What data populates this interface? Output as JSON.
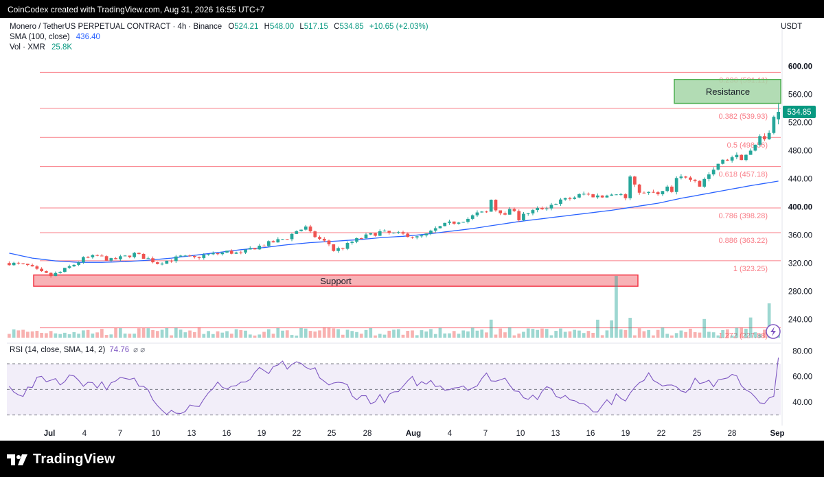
{
  "header": {
    "credit": "CoinCodex created with TradingView.com, Aug 31, 2026 16:55 UTC+7"
  },
  "footer": {
    "brand": "TradingView"
  },
  "legend": {
    "symbol": "Monero / TetherUS PERPETUAL CONTRACT · 4h · Binance",
    "ohlc": [
      {
        "key": "O",
        "value": "524.21"
      },
      {
        "key": "H",
        "value": "548.00"
      },
      {
        "key": "L",
        "value": "517.15"
      },
      {
        "key": "C",
        "value": "534.85"
      }
    ],
    "change": "+10.65 (+2.03%)",
    "sma_label": "SMA (100, close)",
    "sma_value": "436.40",
    "vol_label": "Vol · XMR",
    "vol_value": "25.8K",
    "rsi_label": "RSI (14, close, SMA, 14, 2)",
    "rsi_value": "74.76",
    "rsi_extra": "⌀ ⌀"
  },
  "colors": {
    "up": "#26a69a",
    "down": "#ef5350",
    "sma": "#2962ff",
    "fib": "#f7525f",
    "rsi": "#7e57c2",
    "support": "#f23645",
    "resistance": "#4caf50"
  },
  "chart_data": {
    "type": "candlestick",
    "currency": "USDT",
    "price_axis": {
      "ticks": [
        "600.00",
        "560.00",
        "520.00",
        "480.00",
        "440.00",
        "400.00",
        "360.00",
        "320.00",
        "280.00",
        "240.00"
      ],
      "range": [
        210,
        610
      ]
    },
    "last_price": "534.85",
    "x_ticks": [
      "Jul",
      "4",
      "7",
      "10",
      "13",
      "16",
      "19",
      "22",
      "25",
      "28",
      "Aug",
      "4",
      "7",
      "10",
      "13",
      "16",
      "19",
      "22",
      "25",
      "28",
      "Sep"
    ],
    "fib_levels": [
      {
        "label": "0.236 (591.11)",
        "price": 591.11
      },
      {
        "label": "0.382 (539.93)",
        "price": 539.93
      },
      {
        "label": "0.5 (498.56)",
        "price": 498.56
      },
      {
        "label": "0.618 (457.18)",
        "price": 457.18
      },
      {
        "label": "0.786 (398.28)",
        "price": 398.28
      },
      {
        "label": "0.886 (363.22)",
        "price": 363.22
      },
      {
        "label": "1 (323.25)",
        "price": 323.25
      },
      {
        "label": "1.272 (227.88)",
        "price": 227.88
      }
    ],
    "zones": [
      {
        "label": "Support",
        "low": 287,
        "high": 303
      },
      {
        "label": "Resistance",
        "low": 547,
        "high": 581
      }
    ],
    "price_path": [
      [
        0,
        320
      ],
      [
        4,
        316
      ],
      [
        7,
        306
      ],
      [
        9,
        302
      ],
      [
        11,
        307
      ],
      [
        14,
        318
      ],
      [
        16,
        326
      ],
      [
        19,
        330
      ],
      [
        22,
        324
      ],
      [
        25,
        329
      ],
      [
        27,
        333
      ],
      [
        30,
        326
      ],
      [
        32,
        320
      ],
      [
        35,
        325
      ],
      [
        37,
        329
      ],
      [
        40,
        327
      ],
      [
        42,
        331
      ],
      [
        45,
        333
      ],
      [
        47,
        336
      ],
      [
        50,
        333
      ],
      [
        52,
        340
      ],
      [
        55,
        346
      ],
      [
        57,
        350
      ],
      [
        60,
        356
      ],
      [
        62,
        366
      ],
      [
        64,
        370
      ],
      [
        65,
        362
      ],
      [
        67,
        354
      ],
      [
        69,
        347
      ],
      [
        70,
        338
      ],
      [
        72,
        342
      ],
      [
        74,
        350
      ],
      [
        76,
        356
      ],
      [
        78,
        360
      ],
      [
        80,
        364
      ],
      [
        82,
        362
      ],
      [
        84,
        361
      ],
      [
        86,
        360
      ],
      [
        88,
        356
      ],
      [
        90,
        360
      ],
      [
        92,
        368
      ],
      [
        94,
        374
      ],
      [
        97,
        380
      ],
      [
        99,
        383
      ],
      [
        101,
        390
      ],
      [
        103,
        392
      ],
      [
        104,
        410
      ],
      [
        105,
        396
      ],
      [
        107,
        392
      ],
      [
        109,
        396
      ],
      [
        110,
        383
      ],
      [
        112,
        392
      ],
      [
        114,
        396
      ],
      [
        116,
        400
      ],
      [
        118,
        406
      ],
      [
        120,
        410
      ],
      [
        122,
        414
      ],
      [
        124,
        418
      ],
      [
        126,
        416
      ],
      [
        128,
        414
      ],
      [
        130,
        418
      ],
      [
        132,
        420
      ],
      [
        133,
        410
      ],
      [
        134,
        446
      ],
      [
        135,
        428
      ],
      [
        137,
        418
      ],
      [
        139,
        420
      ],
      [
        140,
        416
      ],
      [
        142,
        426
      ],
      [
        143,
        420
      ],
      [
        144,
        438
      ],
      [
        146,
        444
      ],
      [
        148,
        440
      ],
      [
        149,
        430
      ],
      [
        150,
        440
      ],
      [
        152,
        450
      ],
      [
        153,
        460
      ],
      [
        154,
        464
      ],
      [
        156,
        472
      ],
      [
        158,
        470
      ],
      [
        160,
        478
      ],
      [
        161,
        486
      ],
      [
        162,
        498
      ],
      [
        163,
        492
      ],
      [
        164,
        508
      ],
      [
        165,
        526
      ],
      [
        166,
        535
      ]
    ],
    "sma_path": [
      [
        0,
        334
      ],
      [
        5,
        327
      ],
      [
        10,
        323
      ],
      [
        15,
        321
      ],
      [
        20,
        321
      ],
      [
        25,
        322
      ],
      [
        30,
        324
      ],
      [
        35,
        327
      ],
      [
        40,
        331
      ],
      [
        45,
        335
      ],
      [
        50,
        339
      ],
      [
        55,
        342
      ],
      [
        60,
        346
      ],
      [
        65,
        349
      ],
      [
        70,
        351
      ],
      [
        75,
        353
      ],
      [
        80,
        356
      ],
      [
        85,
        358
      ],
      [
        90,
        361
      ],
      [
        95,
        365
      ],
      [
        100,
        369
      ],
      [
        105,
        374
      ],
      [
        110,
        379
      ],
      [
        115,
        383
      ],
      [
        120,
        387
      ],
      [
        125,
        391
      ],
      [
        130,
        395
      ],
      [
        135,
        400
      ],
      [
        140,
        405
      ],
      [
        145,
        412
      ],
      [
        150,
        418
      ],
      [
        155,
        424
      ],
      [
        160,
        430
      ],
      [
        166,
        436.4
      ]
    ],
    "rsi": {
      "label": "RSI (14, close, SMA, 14, 2)",
      "current": 74.76,
      "ticks": [
        "80.00",
        "60.00",
        "40.00"
      ],
      "range": [
        25,
        85
      ],
      "overbought": 70,
      "midline": 50,
      "oversold": 30
    },
    "volume_note": "Vol · XMR 25.8K"
  }
}
